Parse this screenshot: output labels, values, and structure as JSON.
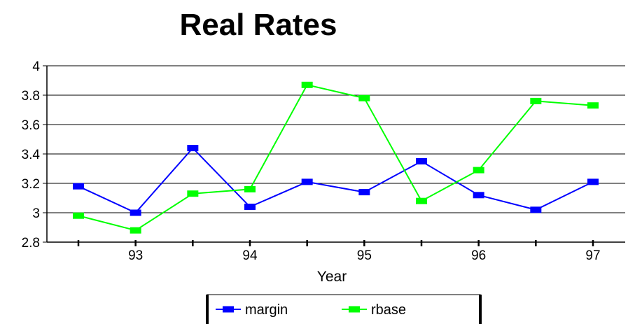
{
  "chart_data": {
    "type": "line",
    "title": "Real Rates",
    "xlabel": "Year",
    "ylabel": "",
    "ylim": [
      2.8,
      4
    ],
    "yticks": [
      "2.8",
      "3",
      "3.2",
      "3.4",
      "3.6",
      "3.8",
      "4"
    ],
    "xticks": [
      "93",
      "94",
      "95",
      "96",
      "97"
    ],
    "x": [
      92.5,
      93,
      93.5,
      94,
      94.5,
      95,
      95.5,
      96,
      96.5,
      97
    ],
    "series": [
      {
        "name": "margin",
        "color": "#0000ff",
        "values": [
          3.18,
          3.0,
          3.44,
          3.04,
          3.21,
          3.14,
          3.35,
          3.12,
          3.02,
          3.21
        ]
      },
      {
        "name": "rbase",
        "color": "#00ff00",
        "values": [
          2.98,
          2.88,
          3.13,
          3.16,
          3.87,
          3.78,
          3.08,
          3.29,
          3.76,
          3.73
        ]
      }
    ],
    "grid": true,
    "legend": "bottom"
  }
}
